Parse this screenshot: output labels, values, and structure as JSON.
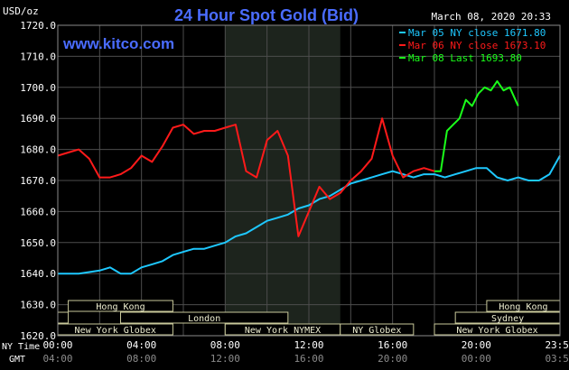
{
  "header": {
    "title": "24 Hour Spot Gold (Bid)",
    "timestamp": "March 08, 2020 20:33",
    "unit": "USD/oz",
    "website": "www.kitco.com"
  },
  "legend": {
    "items": [
      {
        "label": "Mar 05 NY close 1671.80",
        "color": "#1ec8ff"
      },
      {
        "label": "Mar 06 NY close 1673.10",
        "color": "#ff1a1a"
      },
      {
        "label": "Mar 08 Last 1693.80",
        "color": "#1aff1a"
      }
    ]
  },
  "axis": {
    "y_ticks": [
      "1720.0",
      "1710.0",
      "1700.0",
      "1690.0",
      "1680.0",
      "1670.0",
      "1660.0",
      "1650.0",
      "1640.0",
      "1630.0",
      "1620.0"
    ],
    "ny_time_label": "NY Time",
    "gmt_label": "GMT",
    "ny_time_ticks": [
      "00:00",
      "04:00",
      "08:00",
      "12:00",
      "16:00",
      "20:00",
      "23:59"
    ],
    "gmt_ticks": [
      "04:00",
      "08:00",
      "12:00",
      "16:00",
      "20:00",
      "00:00",
      "03:59"
    ]
  },
  "sessions": {
    "hong_kong_1": "Hong Kong",
    "london": "London",
    "ny_globex_1": "New York Globex",
    "ny_nymex": "New York NYMEX",
    "ny_globex_2": "NY Globex",
    "hong_kong_2": "Hong Kong",
    "sydney": "Sydney",
    "ny_globex_3": "New York Globex"
  },
  "chart_data": {
    "type": "line",
    "title": "24 Hour Spot Gold (Bid)",
    "ylabel": "USD/oz",
    "xlabel": "NY Time",
    "ylim": [
      1620,
      1720
    ],
    "xlim_hours": [
      0,
      24
    ],
    "grid": true,
    "shaded_region_hours": [
      8,
      13.5
    ],
    "series": [
      {
        "name": "Mar 05 NY close 1671.80",
        "color": "#1ec8ff",
        "x": [
          0,
          0.5,
          1,
          1.5,
          2,
          2.5,
          3,
          3.5,
          4,
          4.5,
          5,
          5.5,
          6,
          6.5,
          7,
          7.5,
          8,
          8.5,
          9,
          9.5,
          10,
          10.5,
          11,
          11.5,
          12,
          12.5,
          13,
          13.5,
          14,
          14.5,
          15,
          15.5,
          16,
          16.5,
          17,
          17.5,
          18,
          18.5,
          19,
          19.5,
          20,
          20.5,
          21,
          21.5,
          22,
          22.5,
          23,
          23.5,
          24
        ],
        "values": [
          1640,
          1640,
          1640,
          1640.5,
          1641,
          1642,
          1640,
          1640,
          1642,
          1643,
          1644,
          1646,
          1647,
          1648,
          1648,
          1649,
          1650,
          1652,
          1653,
          1655,
          1657,
          1658,
          1659,
          1661,
          1662,
          1664,
          1665,
          1667,
          1669,
          1670,
          1671,
          1672,
          1673,
          1672,
          1671,
          1672,
          1672,
          1671,
          1672,
          1673,
          1674,
          1674,
          1671,
          1670,
          1671,
          1670,
          1670,
          1672,
          1678
        ]
      },
      {
        "name": "Mar 06 NY close 1673.10",
        "color": "#ff1a1a",
        "x": [
          0,
          0.5,
          1,
          1.5,
          2,
          2.5,
          3,
          3.5,
          4,
          4.5,
          5,
          5.5,
          6,
          6.5,
          7,
          7.5,
          8,
          8.5,
          9,
          9.5,
          10,
          10.5,
          11,
          11.5,
          12,
          12.5,
          13,
          13.5,
          14,
          14.5,
          15,
          15.5,
          16,
          16.5,
          17,
          17.5,
          18
        ],
        "values": [
          1678,
          1679,
          1680,
          1677,
          1671,
          1671,
          1672,
          1674,
          1678,
          1676,
          1681,
          1687,
          1688,
          1685,
          1686,
          1686,
          1687,
          1688,
          1673,
          1671,
          1683,
          1686,
          1678,
          1652,
          1660,
          1668,
          1664,
          1666,
          1670,
          1673,
          1677,
          1690,
          1678,
          1671,
          1673,
          1674,
          1673
        ]
      },
      {
        "name": "Mar 08 Last 1693.80",
        "color": "#1aff1a",
        "x": [
          18,
          18.3,
          18.6,
          18.9,
          19.2,
          19.5,
          19.8,
          20.1,
          20.4,
          20.7,
          21,
          21.3,
          21.6,
          22
        ],
        "values": [
          1673,
          1673,
          1686,
          1688,
          1690,
          1696,
          1694,
          1698,
          1700,
          1699,
          1702,
          1699,
          1700,
          1694
        ]
      }
    ]
  }
}
